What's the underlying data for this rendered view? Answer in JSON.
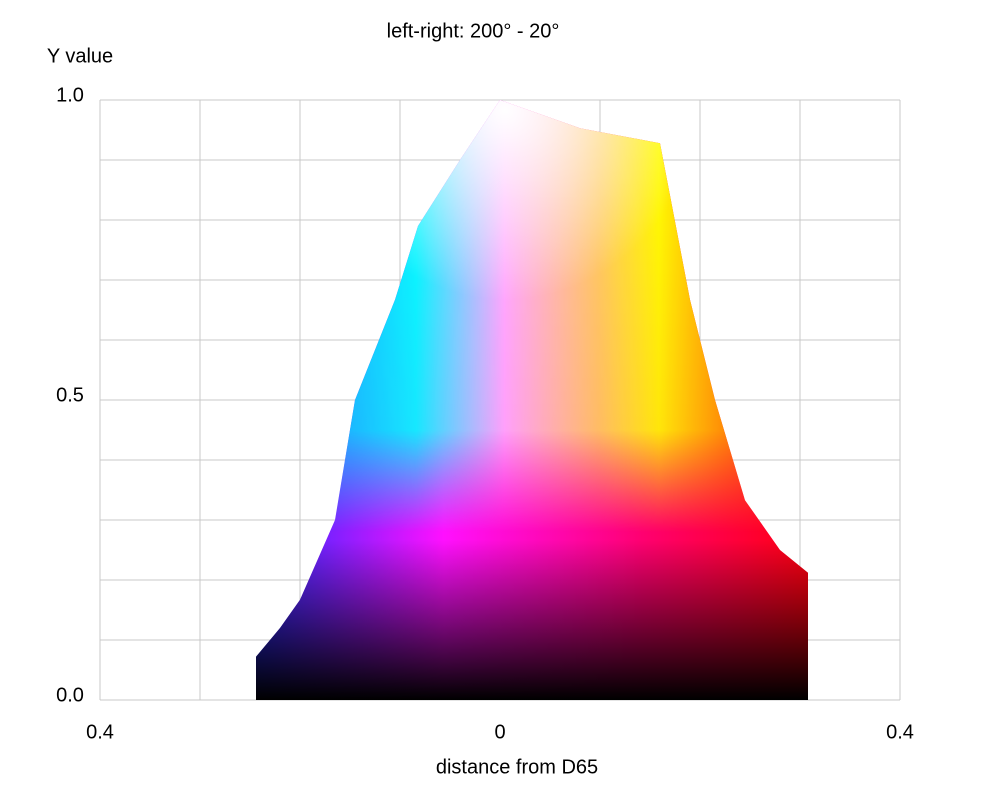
{
  "chart_data": {
    "type": "gamut",
    "title": "left-right: 200° - 20°",
    "ylabel": "Y value",
    "xlabel": "distance from D65",
    "x": [
      -0.244,
      -0.244,
      -0.22,
      -0.2,
      -0.165,
      -0.145,
      -0.105,
      -0.082,
      -0.04,
      0,
      0.08,
      0.16,
      0.19,
      0.215,
      0.245,
      0.28,
      0.308,
      0.308
    ],
    "values": [
      0,
      0.072,
      0.12,
      0.167,
      0.3,
      0.5,
      0.667,
      0.79,
      0.9,
      1.0,
      0.953,
      0.928,
      0.667,
      0.5,
      0.333,
      0.25,
      0.212,
      0
    ],
    "xlim": [
      -0.4,
      0.4
    ],
    "ylim": [
      0,
      1
    ],
    "xticks": [
      {
        "value": -0.4,
        "label": "0.4"
      },
      0,
      0.4
    ],
    "yticks": [
      {
        "value": 0,
        "label": "0.0"
      },
      0.5,
      {
        "value": 1,
        "label": "1.0"
      }
    ],
    "xgrid": [
      -0.4,
      -0.3,
      -0.2,
      -0.1,
      0,
      0.1,
      0.2,
      0.3,
      0.4
    ],
    "ygrid": [
      0,
      0.1,
      0.2,
      0.3,
      0.4,
      0.5,
      0.6,
      0.7,
      0.8,
      0.9,
      1
    ],
    "grid": true
  }
}
